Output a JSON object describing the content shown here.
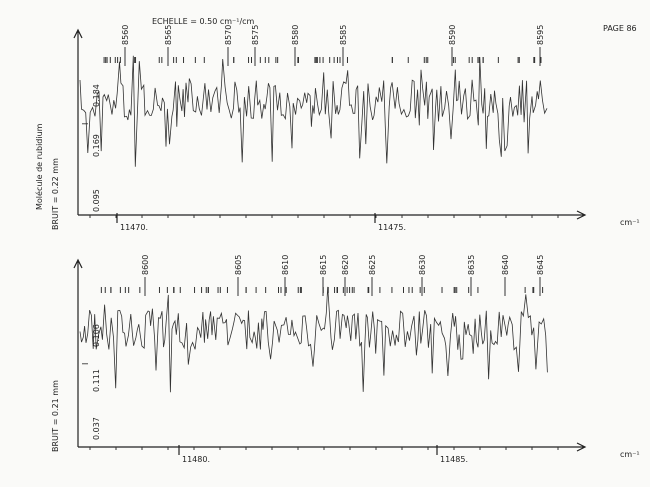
{
  "header": {
    "scale": "ECHELLE = 0.50 cm⁻¹/cm",
    "page": "PAGE 86"
  },
  "side_title": "Molécule de rubidium",
  "panels": [
    {
      "noise": "BRUIT = 0.22 mm",
      "marker": "I",
      "intensity_labels": [
        "0.184",
        "0.169",
        "0.095"
      ],
      "line_labels": [
        "8560",
        "8565",
        "8570",
        "8575",
        "8580",
        "8585",
        "8590",
        "8595"
      ],
      "wavenumber_labels": [
        "11470.",
        "11475."
      ],
      "unit": "cm⁻¹"
    },
    {
      "noise": "BRUIT = 0.21 mm",
      "marker": "I",
      "intensity_labels": [
        "0.106",
        "0.111",
        "0.037"
      ],
      "line_labels": [
        "8600",
        "8605",
        "8610",
        "8615",
        "8620",
        "8625",
        "8630",
        "8635",
        "8640",
        "8645"
      ],
      "wavenumber_labels": [
        "11480.",
        "11485."
      ],
      "unit": "cm⁻¹"
    }
  ]
}
